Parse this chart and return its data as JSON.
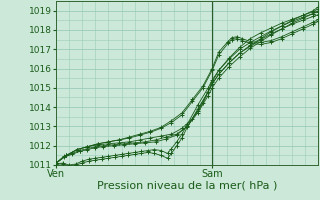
{
  "background_color": "#cce8d8",
  "plot_bg_color": "#cce8d8",
  "grid_color": "#99ccbb",
  "line_color": "#1a5c1a",
  "marker_color": "#1a5c1a",
  "ylim": [
    1011.0,
    1019.5
  ],
  "yticks": [
    1011,
    1012,
    1013,
    1014,
    1015,
    1016,
    1017,
    1018,
    1019
  ],
  "xlabel": "Pression niveau de la mer( hPa )",
  "xtick_labels": [
    "Ven",
    "Sam"
  ],
  "xtick_positions": [
    0.0,
    0.595
  ],
  "vline_pos": 0.595,
  "xlabel_fontsize": 8,
  "ytick_fontsize": 6.5,
  "xtick_fontsize": 7,
  "xlim": [
    0.0,
    1.0
  ],
  "series": [
    [
      0.0,
      1011.1,
      0.03,
      1011.45,
      0.06,
      1011.6,
      0.09,
      1011.75,
      0.12,
      1011.85,
      0.15,
      1011.95,
      0.18,
      1012.0,
      0.22,
      1012.05,
      0.26,
      1012.1,
      0.3,
      1012.15,
      0.34,
      1012.2,
      0.38,
      1012.3,
      0.42,
      1012.45,
      0.46,
      1012.6,
      0.5,
      1013.0,
      0.54,
      1013.8,
      0.58,
      1014.8,
      0.595,
      1015.2,
      0.62,
      1015.7,
      0.66,
      1016.3,
      0.7,
      1016.8,
      0.74,
      1017.2,
      0.78,
      1017.55,
      0.82,
      1017.9,
      0.86,
      1018.2,
      0.9,
      1018.5,
      0.94,
      1018.75,
      0.98,
      1019.0,
      1.0,
      1019.2
    ],
    [
      0.0,
      1011.1,
      0.03,
      1011.4,
      0.06,
      1011.55,
      0.09,
      1011.7,
      0.12,
      1011.8,
      0.15,
      1011.9,
      0.18,
      1011.95,
      0.22,
      1012.0,
      0.26,
      1012.05,
      0.3,
      1012.1,
      0.34,
      1012.15,
      0.38,
      1012.2,
      0.42,
      1012.35,
      0.46,
      1012.55,
      0.5,
      1013.0,
      0.54,
      1013.7,
      0.58,
      1014.6,
      0.595,
      1015.0,
      0.62,
      1015.5,
      0.66,
      1016.1,
      0.7,
      1016.6,
      0.74,
      1017.05,
      0.78,
      1017.4,
      0.82,
      1017.75,
      0.86,
      1018.05,
      0.9,
      1018.35,
      0.94,
      1018.6,
      0.98,
      1018.85,
      1.0,
      1019.0
    ],
    [
      0.0,
      1011.05,
      0.025,
      1011.1,
      0.05,
      1011.0,
      0.075,
      1011.05,
      0.1,
      1011.2,
      0.125,
      1011.3,
      0.15,
      1011.35,
      0.175,
      1011.4,
      0.2,
      1011.45,
      0.225,
      1011.5,
      0.25,
      1011.55,
      0.275,
      1011.6,
      0.3,
      1011.65,
      0.325,
      1011.7,
      0.35,
      1011.75,
      0.375,
      1011.8,
      0.4,
      1011.75,
      0.425,
      1011.6,
      0.44,
      1011.85,
      0.46,
      1012.2,
      0.48,
      1012.6,
      0.5,
      1013.1,
      0.54,
      1014.1,
      0.58,
      1015.0,
      0.595,
      1015.4,
      0.62,
      1015.9,
      0.66,
      1016.5,
      0.7,
      1017.0,
      0.74,
      1017.35,
      0.78,
      1017.65,
      0.82,
      1017.95,
      0.86,
      1018.2,
      0.9,
      1018.45,
      0.94,
      1018.65,
      0.98,
      1018.85,
      1.0,
      1018.95
    ],
    [
      0.0,
      1011.05,
      0.025,
      1011.05,
      0.05,
      1010.95,
      0.075,
      1011.0,
      0.1,
      1011.1,
      0.125,
      1011.2,
      0.15,
      1011.25,
      0.175,
      1011.3,
      0.2,
      1011.35,
      0.225,
      1011.4,
      0.25,
      1011.45,
      0.275,
      1011.5,
      0.3,
      1011.55,
      0.325,
      1011.6,
      0.35,
      1011.65,
      0.375,
      1011.6,
      0.4,
      1011.5,
      0.425,
      1011.35,
      0.44,
      1011.6,
      0.46,
      1012.0,
      0.48,
      1012.4,
      0.5,
      1012.95,
      0.54,
      1013.9,
      0.58,
      1014.8,
      0.595,
      1015.2,
      0.62,
      1015.7,
      0.66,
      1016.3,
      0.7,
      1016.8,
      0.74,
      1017.15,
      0.78,
      1017.5,
      0.82,
      1017.8,
      0.86,
      1018.05,
      0.9,
      1018.3,
      0.94,
      1018.5,
      0.98,
      1018.7,
      1.0,
      1018.8
    ],
    [
      0.0,
      1011.1,
      0.04,
      1011.5,
      0.08,
      1011.8,
      0.12,
      1011.95,
      0.16,
      1012.05,
      0.2,
      1012.1,
      0.24,
      1012.15,
      0.28,
      1012.2,
      0.32,
      1012.3,
      0.36,
      1012.4,
      0.4,
      1012.5,
      0.44,
      1012.6,
      0.48,
      1012.9,
      0.52,
      1013.4,
      0.56,
      1014.2,
      0.595,
      1015.3,
      0.62,
      1015.9,
      0.66,
      1016.55,
      0.7,
      1017.1,
      0.74,
      1017.55,
      0.78,
      1017.85,
      0.82,
      1018.1,
      0.86,
      1018.35,
      0.9,
      1018.55,
      0.94,
      1018.75,
      0.98,
      1018.95,
      1.0,
      1019.1
    ],
    [
      0.0,
      1011.1,
      0.04,
      1011.5,
      0.08,
      1011.8,
      0.12,
      1011.95,
      0.16,
      1012.1,
      0.2,
      1012.2,
      0.24,
      1012.3,
      0.28,
      1012.4,
      0.32,
      1012.55,
      0.36,
      1012.7,
      0.4,
      1012.9,
      0.44,
      1013.2,
      0.48,
      1013.6,
      0.52,
      1014.3,
      0.56,
      1015.0,
      0.595,
      1015.9,
      0.62,
      1016.7,
      0.655,
      1017.3,
      0.67,
      1017.5,
      0.69,
      1017.55,
      0.71,
      1017.45,
      0.74,
      1017.3,
      0.78,
      1017.25,
      0.82,
      1017.35,
      0.86,
      1017.55,
      0.9,
      1017.8,
      0.94,
      1018.05,
      0.98,
      1018.3,
      1.0,
      1018.45
    ],
    [
      0.0,
      1011.1,
      0.04,
      1011.5,
      0.08,
      1011.8,
      0.12,
      1011.95,
      0.16,
      1012.1,
      0.2,
      1012.2,
      0.24,
      1012.3,
      0.28,
      1012.45,
      0.32,
      1012.6,
      0.36,
      1012.75,
      0.4,
      1012.95,
      0.44,
      1013.3,
      0.48,
      1013.7,
      0.52,
      1014.4,
      0.56,
      1015.1,
      0.595,
      1016.0,
      0.62,
      1016.85,
      0.655,
      1017.4,
      0.67,
      1017.6,
      0.69,
      1017.65,
      0.71,
      1017.55,
      0.74,
      1017.4,
      0.78,
      1017.35,
      0.82,
      1017.45,
      0.86,
      1017.65,
      0.9,
      1017.9,
      0.94,
      1018.15,
      0.98,
      1018.4,
      1.0,
      1018.55
    ]
  ]
}
